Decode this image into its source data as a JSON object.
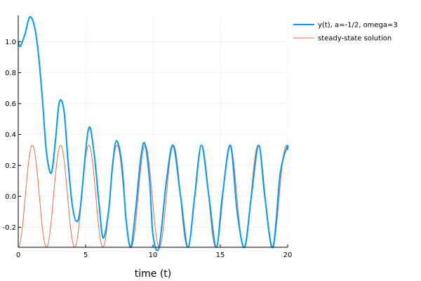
{
  "chart_data": {
    "type": "line",
    "title": "",
    "xlabel": "time (t)",
    "ylabel": "",
    "xlim": [
      0,
      20
    ],
    "ylim": [
      -0.33,
      1.17
    ],
    "xticks": [
      0,
      5,
      10,
      15,
      20
    ],
    "yticks": [
      -0.2,
      0.0,
      0.2,
      0.4,
      0.6,
      0.8,
      1.0
    ],
    "ytick_labels": [
      "-0.2",
      "0.0",
      "0.2",
      "0.4",
      "0.6",
      "0.8",
      "1.0"
    ],
    "grid": true,
    "legend_position": "top-right, outside plot",
    "series": [
      {
        "name": "y(t), a=-1/2, omega=3",
        "color": "#009af9",
        "x": [
          0,
          0.15,
          0.5,
          0.85,
          1.2,
          1.5,
          1.8,
          2.1,
          2.45,
          2.75,
          3.05,
          3.4,
          3.7,
          4.0,
          4.3,
          4.6,
          5.2,
          5.6,
          6.0,
          6.3,
          6.7,
          7.0,
          7.3,
          7.7,
          8.0,
          8.35,
          8.7,
          9.1,
          9.4,
          9.75,
          10.0,
          10.45,
          11.0,
          11.5,
          12.05,
          12.6,
          13.1,
          13.6,
          14.15,
          14.7,
          15.15,
          15.75,
          16.25,
          16.8,
          17.3,
          17.85,
          18.3,
          18.9,
          19.45,
          19.95,
          20.0
        ],
        "y": [
          1.0,
          0.97,
          1.05,
          1.16,
          1.1,
          0.92,
          0.62,
          0.28,
          0.15,
          0.35,
          0.61,
          0.55,
          0.22,
          -0.05,
          -0.16,
          -0.08,
          0.43,
          0.3,
          -0.05,
          -0.27,
          -0.1,
          0.2,
          0.36,
          0.2,
          -0.15,
          -0.33,
          -0.1,
          0.25,
          0.34,
          0.1,
          -0.25,
          -0.33,
          0.1,
          0.33,
          0.0,
          -0.33,
          0.0,
          0.33,
          0.0,
          -0.33,
          0.0,
          0.33,
          -0.1,
          -0.33,
          0.0,
          0.33,
          0.0,
          -0.33,
          0.15,
          0.32,
          0.3
        ]
      },
      {
        "name": "steady-state solution",
        "color": "#e26f46",
        "amplitude": 0.33,
        "omega": 3
      }
    ]
  }
}
